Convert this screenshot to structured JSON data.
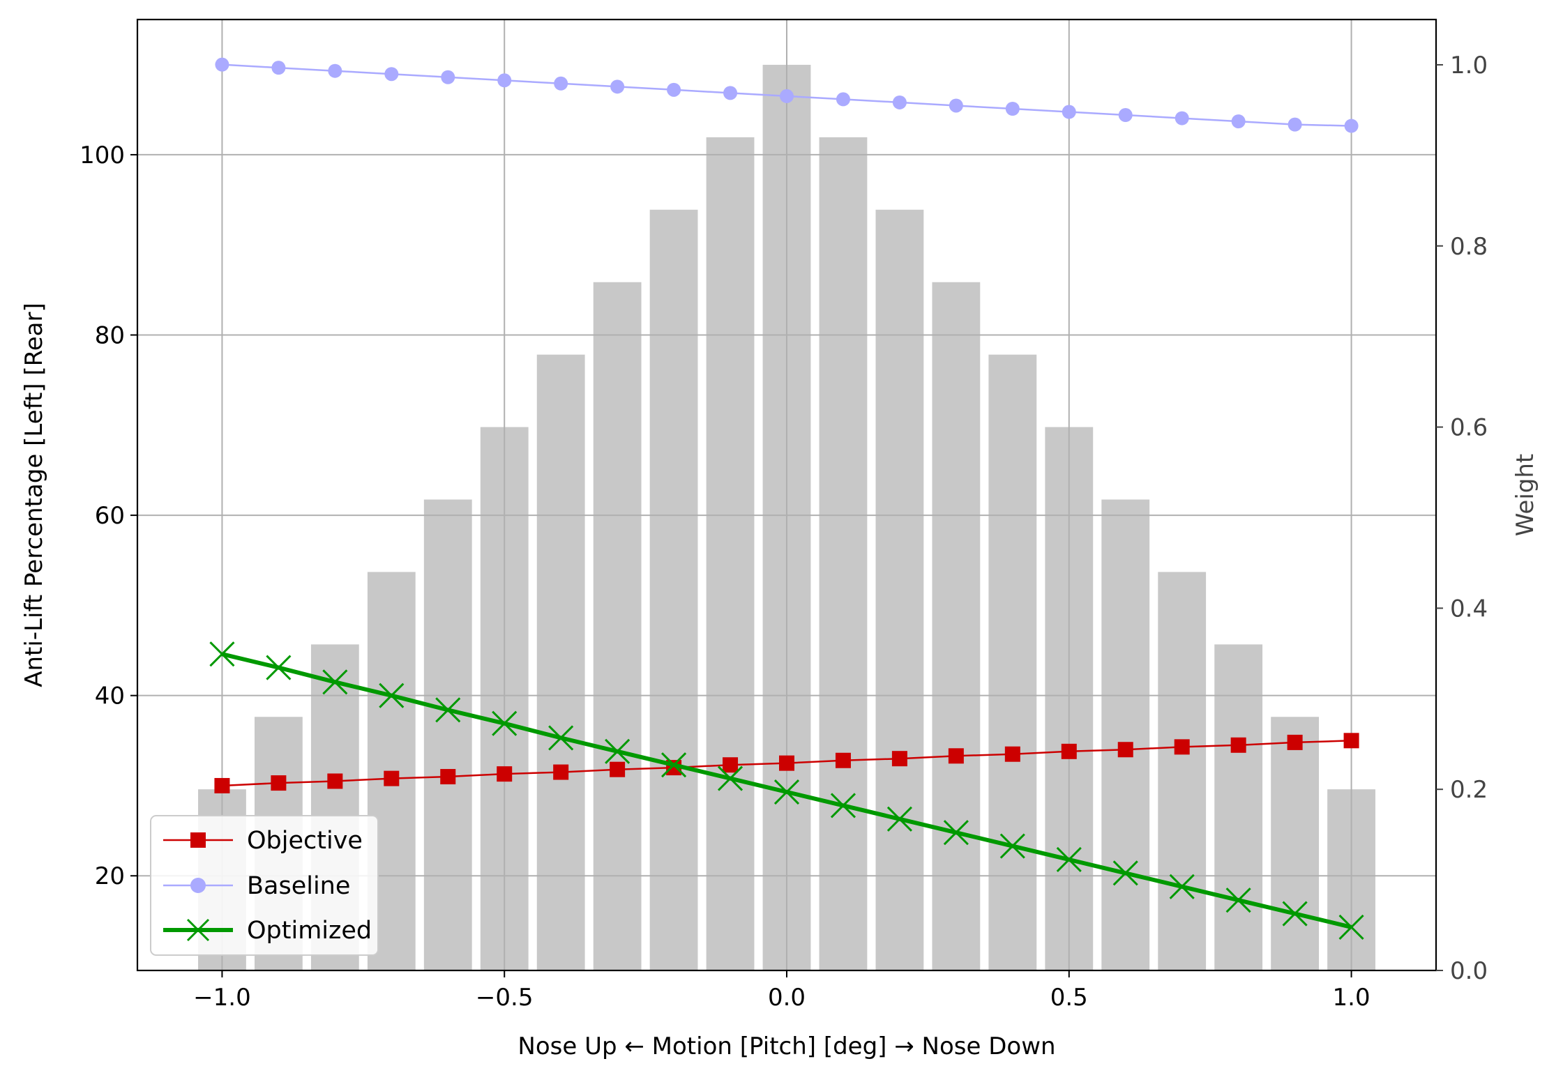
{
  "chart_data": {
    "type": "line",
    "xlabel": "Nose Up ← Motion [Pitch] [deg] → Nose Down",
    "ylabel_left": "Anti-Lift Percentage [Left] [Rear]",
    "ylabel_right": "Weight",
    "xlim": [
      -1.15,
      1.15
    ],
    "ylim_left": [
      9.5,
      115
    ],
    "ylim_right": [
      0,
      1.05
    ],
    "x_ticks": [
      -1.0,
      -0.5,
      0.0,
      0.5,
      1.0
    ],
    "x_tick_labels": [
      "−1.0",
      "−0.5",
      "0.0",
      "0.5",
      "1.0"
    ],
    "y_left_ticks": [
      20,
      40,
      60,
      80,
      100
    ],
    "y_left_tick_labels": [
      "20",
      "40",
      "60",
      "80",
      "100"
    ],
    "y_right_ticks": [
      0.0,
      0.2,
      0.4,
      0.6,
      0.8,
      1.0
    ],
    "y_right_tick_labels": [
      "0.0",
      "0.2",
      "0.4",
      "0.6",
      "0.8",
      "1.0"
    ],
    "grid": true,
    "legend_position": "lower-left",
    "x": [
      -1.0,
      -0.9,
      -0.8,
      -0.7,
      -0.6,
      -0.5,
      -0.4,
      -0.3,
      -0.2,
      -0.1,
      0.0,
      0.1,
      0.2,
      0.3,
      0.4,
      0.5,
      0.6,
      0.7,
      0.8,
      0.9,
      1.0
    ],
    "series": [
      {
        "name": "Objective",
        "axis": "left",
        "color": "#cc0000",
        "marker": "square",
        "values": [
          30.0,
          30.3,
          30.5,
          30.8,
          31.0,
          31.3,
          31.5,
          31.8,
          32.0,
          32.3,
          32.5,
          32.8,
          33.0,
          33.3,
          33.5,
          33.8,
          34.0,
          34.3,
          34.5,
          34.8,
          35.0
        ]
      },
      {
        "name": "Baseline",
        "axis": "left",
        "color": "#aaaaff",
        "marker": "circle",
        "values": [
          110.0,
          109.65,
          109.3,
          108.95,
          108.6,
          108.25,
          107.9,
          107.55,
          107.2,
          106.85,
          106.5,
          106.15,
          105.8,
          105.45,
          105.1,
          104.75,
          104.4,
          104.05,
          103.7,
          103.35,
          103.2
        ]
      },
      {
        "name": "Optimized",
        "axis": "left",
        "color": "#009900",
        "marker": "x",
        "values": [
          44.6,
          43.1,
          41.5,
          40.0,
          38.4,
          36.9,
          35.3,
          33.8,
          32.3,
          30.8,
          29.3,
          27.8,
          26.3,
          24.8,
          23.3,
          21.8,
          20.3,
          18.8,
          17.3,
          15.8,
          14.3
        ]
      }
    ],
    "weights": {
      "axis": "right",
      "color": "#c8c8c8",
      "values": [
        0.2,
        0.28,
        0.36,
        0.44,
        0.52,
        0.6,
        0.68,
        0.76,
        0.84,
        0.92,
        1.0,
        0.92,
        0.84,
        0.76,
        0.68,
        0.6,
        0.52,
        0.44,
        0.36,
        0.28,
        0.2
      ]
    }
  }
}
